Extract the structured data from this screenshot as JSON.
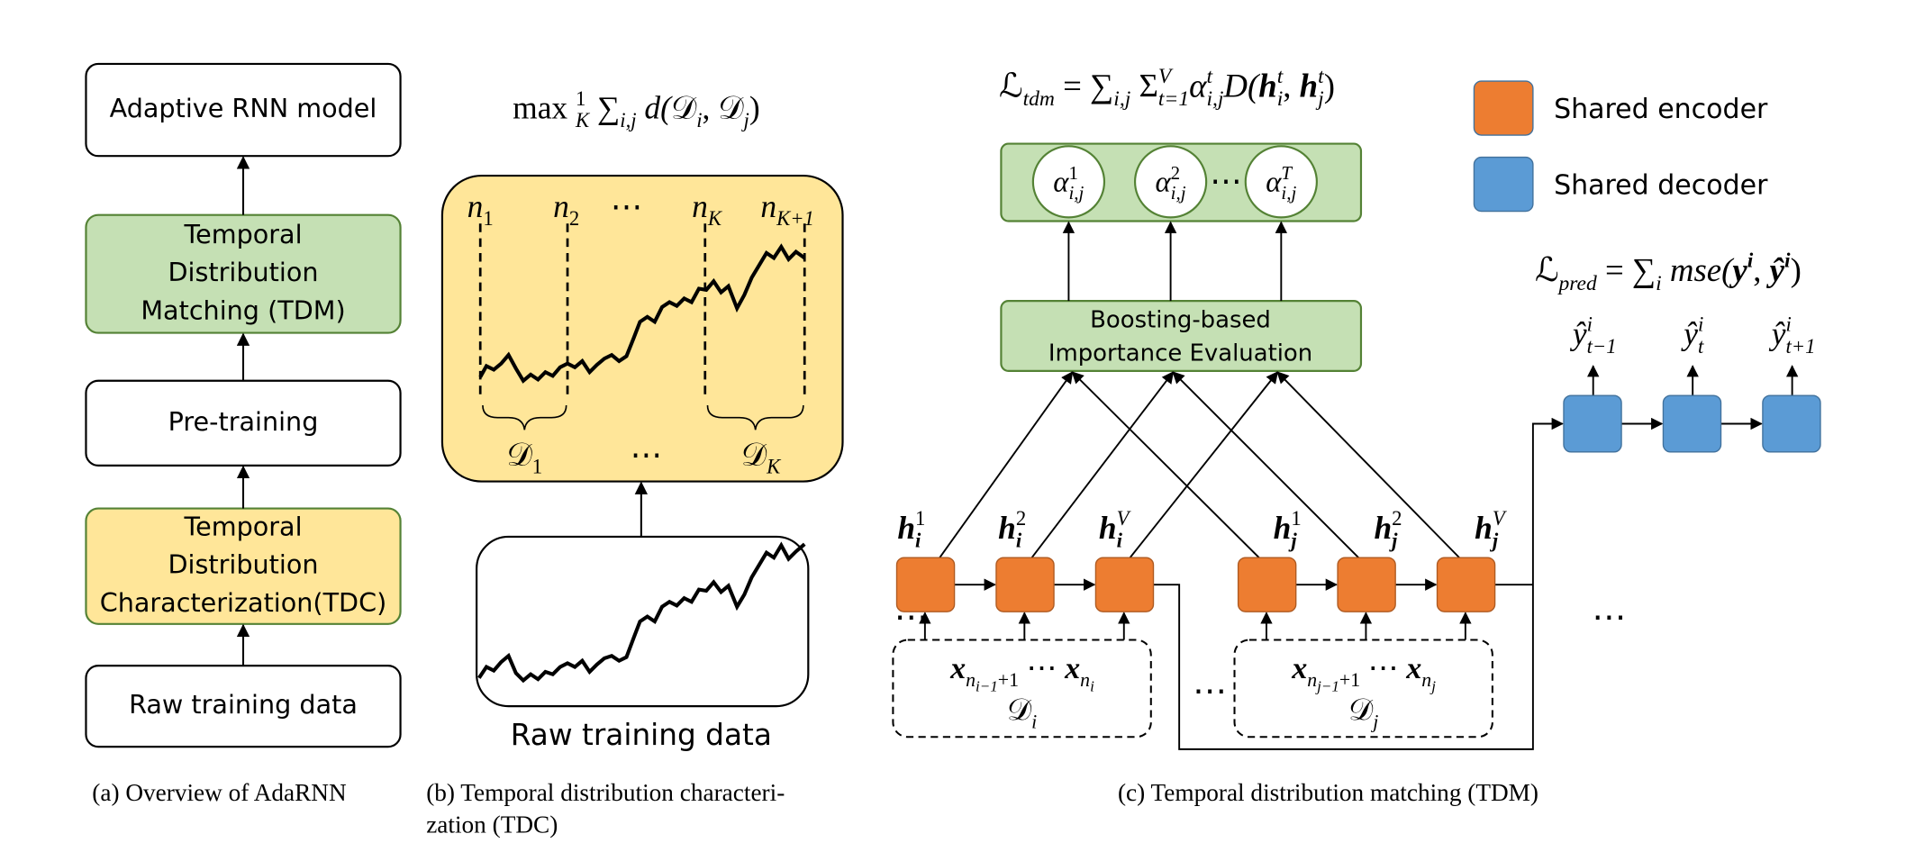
{
  "panel_a": {
    "boxes": [
      [
        "Adaptive RNN model"
      ],
      [
        "Temporal",
        "Distribution",
        "Matching (TDM)"
      ],
      [
        "Pre-training"
      ],
      [
        "Temporal",
        "Distribution",
        "Characterization(TDC)"
      ],
      [
        "Raw training data"
      ]
    ],
    "caption": "(a)  Overview of AdaRNN"
  },
  "panel_b": {
    "objective": [
      [
        "max ",
        "n",
        "r"
      ],
      [
        "1",
        "sup",
        "r"
      ],
      [
        "K",
        "sub",
        "i"
      ],
      [
        " ∑",
        "n",
        "r"
      ],
      [
        "i,j",
        "sub",
        "i"
      ],
      [
        " d(",
        "n",
        "i"
      ],
      [
        "𝒟",
        "n",
        "r"
      ],
      [
        "i",
        "sub",
        "i"
      ],
      [
        ", ",
        "n",
        "r"
      ],
      [
        "𝒟",
        "n",
        "r"
      ],
      [
        "j",
        "sub",
        "i"
      ],
      [
        ")",
        "n",
        "r"
      ]
    ],
    "split_labels": [
      [
        [
          "n",
          "n",
          "i"
        ],
        [
          "1",
          "sub",
          "r"
        ]
      ],
      [
        [
          "n",
          "n",
          "i"
        ],
        [
          "2",
          "sub",
          "r"
        ]
      ],
      [
        [
          "⋯",
          "n",
          "r"
        ]
      ],
      [
        [
          "n",
          "n",
          "i"
        ],
        [
          "K",
          "sub",
          "i"
        ]
      ],
      [
        [
          "n",
          "n",
          "i"
        ],
        [
          "K+1",
          "sub",
          "i"
        ]
      ]
    ],
    "segment_labels": [
      [
        [
          "𝒟",
          "n",
          "r"
        ],
        [
          "1",
          "sub",
          "r"
        ]
      ],
      [
        [
          "⋯",
          "n",
          "r"
        ]
      ],
      [
        [
          "𝒟",
          "n",
          "r"
        ],
        [
          "K",
          "sub",
          "i"
        ]
      ]
    ],
    "input_label": "Raw training data",
    "caption": [
      "(b)  Temporal distribution characteri-",
      "zation (TDC)"
    ]
  },
  "panel_c": {
    "loss_tdm": [
      [
        "ℒ",
        "n",
        "r"
      ],
      [
        "tdm",
        "sub",
        "i"
      ],
      [
        " = ∑",
        "n",
        "r"
      ],
      [
        "i,j",
        "sub",
        "i"
      ],
      [
        " Σ",
        "n",
        "r"
      ],
      [
        "V",
        "sup",
        "i"
      ],
      [
        "t=1",
        "sub",
        "i"
      ],
      [
        "α",
        "n",
        "i"
      ],
      [
        "t",
        "sup",
        "i"
      ],
      [
        "i,j",
        "sub",
        "i"
      ],
      [
        "D(",
        "n",
        "i"
      ],
      [
        "h",
        "n",
        "bi"
      ],
      [
        "t",
        "sup",
        "i"
      ],
      [
        "i",
        "sub",
        "i"
      ],
      [
        ", ",
        "n",
        "r"
      ],
      [
        "h",
        "n",
        "bi"
      ],
      [
        "t",
        "sup",
        "i"
      ],
      [
        "j",
        "sub",
        "i"
      ],
      [
        ")",
        "n",
        "r"
      ]
    ],
    "weights": [
      [
        [
          "α",
          "n",
          "i"
        ],
        [
          "1",
          "sup",
          "r"
        ],
        [
          "i,j",
          "sub",
          "i"
        ]
      ],
      [
        [
          "α",
          "n",
          "i"
        ],
        [
          "2",
          "sup",
          "r"
        ],
        [
          "i,j",
          "sub",
          "i"
        ]
      ],
      [
        [
          "α",
          "n",
          "i"
        ],
        [
          "T",
          "sup",
          "i"
        ],
        [
          "i,j",
          "sub",
          "i"
        ]
      ]
    ],
    "weights_ellipsis": "⋯",
    "evaluator": [
      "Boosting-based",
      "Importance Evaluation"
    ],
    "legend": [
      {
        "label": "Shared encoder",
        "color": "#ed7d31"
      },
      {
        "label": "Shared decoder",
        "color": "#5b9bd5"
      }
    ],
    "loss_pred": [
      [
        "ℒ",
        "n",
        "r"
      ],
      [
        "pred",
        "sub",
        "i"
      ],
      [
        " = ∑",
        "n",
        "r"
      ],
      [
        "i",
        "sub",
        "i"
      ],
      [
        " mse(",
        "n",
        "i"
      ],
      [
        "y",
        "n",
        "bi"
      ],
      [
        "i",
        "sup",
        "bi"
      ],
      [
        ", ",
        "n",
        "r"
      ],
      [
        "ŷ",
        "n",
        "bi"
      ],
      [
        "i",
        "sup",
        "bi"
      ],
      [
        ")",
        "n",
        "r"
      ]
    ],
    "outputs": [
      [
        [
          "ŷ",
          "n",
          "i"
        ],
        [
          "i",
          "sup",
          "i"
        ],
        [
          "t−1",
          "sub",
          "i"
        ]
      ],
      [
        [
          "ŷ",
          "n",
          "i"
        ],
        [
          "i",
          "sup",
          "i"
        ],
        [
          "t",
          "sub",
          "i"
        ]
      ],
      [
        [
          "ŷ",
          "n",
          "i"
        ],
        [
          "i",
          "sup",
          "i"
        ],
        [
          "t+1",
          "sub",
          "i"
        ]
      ]
    ],
    "hidden_i": [
      [
        [
          "h",
          "n",
          "bi"
        ],
        [
          "1",
          "sup",
          "r"
        ],
        [
          "i",
          "sub",
          "bi"
        ]
      ],
      [
        [
          "h",
          "n",
          "bi"
        ],
        [
          "2",
          "sup",
          "r"
        ],
        [
          "i",
          "sub",
          "bi"
        ]
      ],
      [
        [
          "h",
          "n",
          "bi"
        ],
        [
          "V",
          "sup",
          "i"
        ],
        [
          "i",
          "sub",
          "bi"
        ]
      ]
    ],
    "hidden_j": [
      [
        [
          "h",
          "n",
          "bi"
        ],
        [
          "1",
          "sup",
          "r"
        ],
        [
          "j",
          "sub",
          "bi"
        ]
      ],
      [
        [
          "h",
          "n",
          "bi"
        ],
        [
          "2",
          "sup",
          "r"
        ],
        [
          "j",
          "sub",
          "bi"
        ]
      ],
      [
        [
          "h",
          "n",
          "bi"
        ],
        [
          "V",
          "sup",
          "i"
        ],
        [
          "j",
          "sub",
          "bi"
        ]
      ]
    ],
    "inputs": [
      {
        "x": [
          [
            "x",
            "n",
            "bi"
          ],
          [
            "n",
            "sub",
            "i"
          ],
          [
            "i−1",
            "sub2",
            "i"
          ],
          [
            "+1",
            "sub",
            "r"
          ],
          [
            " ⋯ ",
            "n",
            "r"
          ],
          [
            "x",
            "n",
            "bi"
          ],
          [
            "n",
            "sub",
            "i"
          ],
          [
            "i",
            "sub2",
            "i"
          ]
        ],
        "domain": [
          [
            "𝒟",
            "n",
            "r"
          ],
          [
            "i",
            "sub",
            "i"
          ]
        ]
      },
      {
        "x": [
          [
            "x",
            "n",
            "bi"
          ],
          [
            "n",
            "sub",
            "i"
          ],
          [
            "j−1",
            "sub2",
            "i"
          ],
          [
            "+1",
            "sub",
            "r"
          ],
          [
            " ⋯ ",
            "n",
            "r"
          ],
          [
            "x",
            "n",
            "bi"
          ],
          [
            "n",
            "sub",
            "i"
          ],
          [
            "j",
            "sub2",
            "i"
          ]
        ],
        "domain": [
          [
            "𝒟",
            "n",
            "r"
          ],
          [
            "j",
            "sub",
            "i"
          ]
        ]
      }
    ],
    "ellipses": [
      "⋯",
      "⋯",
      "⋯"
    ],
    "caption": "(c)  Temporal distribution matching (TDM)"
  }
}
